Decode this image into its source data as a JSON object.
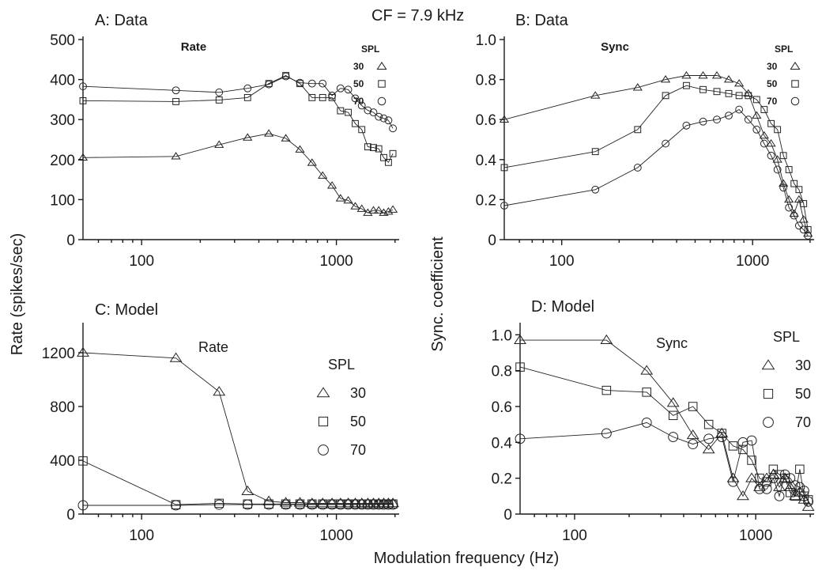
{
  "figure": {
    "header": "CF = 7.9 kHz",
    "shared_ylabel_rate": "Rate (spikes/sec)",
    "shared_ylabel_sync": "Sync. coefficient",
    "shared_xlabel": "Modulation frequency (Hz)"
  },
  "chart_data": [
    {
      "id": "A",
      "type": "line",
      "title": "A: Data",
      "inner_label": "Rate",
      "legend_title": "SPL",
      "xscale": "log",
      "xlim": [
        50,
        2100
      ],
      "ylim": [
        0,
        500
      ],
      "xticks": [
        100,
        1000
      ],
      "yticks": [
        0,
        100,
        200,
        300,
        400,
        500
      ],
      "series": [
        {
          "name": "30",
          "marker": "triangle",
          "x": [
            50,
            150,
            250,
            350,
            450,
            550,
            650,
            750,
            850,
            950,
            1050,
            1150,
            1250,
            1350,
            1450,
            1550,
            1650,
            1750,
            1850,
            1950
          ],
          "y": [
            205,
            208,
            237,
            255,
            265,
            253,
            225,
            192,
            160,
            135,
            103,
            98,
            83,
            77,
            67,
            73,
            73,
            67,
            70,
            75
          ]
        },
        {
          "name": "50",
          "marker": "square",
          "x": [
            50,
            150,
            250,
            350,
            450,
            550,
            650,
            750,
            850,
            950,
            1050,
            1150,
            1250,
            1350,
            1450,
            1550,
            1650,
            1750,
            1850,
            1950
          ],
          "y": [
            347,
            345,
            349,
            355,
            390,
            410,
            390,
            355,
            355,
            355,
            322,
            318,
            290,
            275,
            232,
            230,
            227,
            205,
            193,
            215
          ]
        },
        {
          "name": "70",
          "marker": "circle",
          "x": [
            50,
            150,
            250,
            350,
            450,
            550,
            650,
            750,
            850,
            950,
            1050,
            1150,
            1250,
            1350,
            1450,
            1550,
            1650,
            1750,
            1850,
            1950
          ],
          "y": [
            383,
            373,
            368,
            378,
            388,
            408,
            392,
            390,
            390,
            360,
            378,
            375,
            353,
            335,
            323,
            318,
            307,
            303,
            298,
            278
          ]
        }
      ]
    },
    {
      "id": "B",
      "type": "line",
      "title": "B: Data",
      "inner_label": "Sync",
      "legend_title": "SPL",
      "xscale": "log",
      "xlim": [
        50,
        2100
      ],
      "ylim": [
        0,
        1.0
      ],
      "xticks": [
        100,
        1000
      ],
      "yticks": [
        0,
        0.2,
        0.4,
        0.6,
        0.8,
        1.0
      ],
      "series": [
        {
          "name": "30",
          "marker": "triangle",
          "x": [
            50,
            150,
            250,
            350,
            450,
            550,
            650,
            750,
            850,
            950,
            1050,
            1150,
            1250,
            1350,
            1450,
            1550,
            1650,
            1750,
            1850,
            1950
          ],
          "y": [
            0.6,
            0.72,
            0.76,
            0.8,
            0.82,
            0.82,
            0.82,
            0.8,
            0.78,
            0.73,
            0.62,
            0.52,
            0.48,
            0.4,
            0.28,
            0.2,
            0.13,
            0.2,
            0.1,
            0.03
          ]
        },
        {
          "name": "50",
          "marker": "square",
          "x": [
            50,
            150,
            250,
            350,
            450,
            550,
            650,
            750,
            850,
            950,
            1050,
            1150,
            1250,
            1350,
            1450,
            1550,
            1650,
            1750,
            1850,
            1950
          ],
          "y": [
            0.36,
            0.44,
            0.55,
            0.72,
            0.77,
            0.75,
            0.74,
            0.73,
            0.72,
            0.72,
            0.7,
            0.65,
            0.58,
            0.55,
            0.42,
            0.35,
            0.28,
            0.25,
            0.18,
            0.05
          ]
        },
        {
          "name": "70",
          "marker": "circle",
          "x": [
            50,
            150,
            250,
            350,
            450,
            550,
            650,
            750,
            850,
            950,
            1050,
            1150,
            1250,
            1350,
            1450,
            1550,
            1650,
            1750,
            1850,
            1950
          ],
          "y": [
            0.17,
            0.25,
            0.36,
            0.48,
            0.57,
            0.59,
            0.6,
            0.62,
            0.65,
            0.6,
            0.55,
            0.48,
            0.42,
            0.35,
            0.26,
            0.16,
            0.12,
            0.07,
            0.05,
            0.02
          ]
        }
      ]
    },
    {
      "id": "C",
      "type": "line",
      "title": "C: Model",
      "inner_label": "Rate",
      "legend_title": "SPL",
      "xscale": "log",
      "xlim": [
        50,
        2100
      ],
      "ylim": [
        0,
        1400
      ],
      "xticks": [
        100,
        1000
      ],
      "yticks": [
        0,
        400,
        800,
        1200
      ],
      "series": [
        {
          "name": "30",
          "marker": "triangle",
          "x": [
            50,
            150,
            250,
            350,
            450,
            550,
            650,
            750,
            850,
            950,
            1050,
            1150,
            1250,
            1350,
            1450,
            1550,
            1650,
            1750,
            1850,
            1950
          ],
          "y": [
            1200,
            1160,
            910,
            170,
            95,
            85,
            85,
            80,
            80,
            80,
            80,
            80,
            80,
            80,
            80,
            80,
            80,
            80,
            80,
            80
          ]
        },
        {
          "name": "50",
          "marker": "square",
          "x": [
            50,
            150,
            250,
            350,
            450,
            550,
            650,
            750,
            850,
            950,
            1050,
            1150,
            1250,
            1350,
            1450,
            1550,
            1650,
            1750,
            1850,
            1950
          ],
          "y": [
            395,
            70,
            80,
            75,
            75,
            75,
            75,
            75,
            75,
            75,
            75,
            75,
            75,
            75,
            75,
            75,
            75,
            75,
            75,
            75
          ]
        },
        {
          "name": "70",
          "marker": "circle",
          "x": [
            50,
            150,
            250,
            350,
            450,
            550,
            650,
            750,
            850,
            950,
            1050,
            1150,
            1250,
            1350,
            1450,
            1550,
            1650,
            1750,
            1850,
            1950
          ],
          "y": [
            65,
            65,
            70,
            70,
            70,
            70,
            70,
            70,
            70,
            70,
            70,
            70,
            70,
            70,
            70,
            70,
            70,
            70,
            70,
            70
          ]
        }
      ]
    },
    {
      "id": "D",
      "type": "line",
      "title": "D: Model",
      "inner_label": "Sync",
      "legend_title": "SPL",
      "xscale": "log",
      "xlim": [
        50,
        2100
      ],
      "ylim": [
        0,
        1.05
      ],
      "xticks": [
        100,
        1000
      ],
      "yticks": [
        0,
        0.2,
        0.4,
        0.6,
        0.8,
        1.0
      ],
      "series": [
        {
          "name": "30",
          "marker": "triangle",
          "x": [
            50,
            150,
            250,
            350,
            450,
            550,
            650,
            750,
            850,
            950,
            1050,
            1150,
            1250,
            1350,
            1450,
            1550,
            1650,
            1750,
            1850,
            1950
          ],
          "y": [
            0.97,
            0.97,
            0.8,
            0.62,
            0.44,
            0.36,
            0.45,
            0.2,
            0.1,
            0.2,
            0.15,
            0.2,
            0.22,
            0.15,
            0.2,
            0.15,
            0.1,
            0.12,
            0.08,
            0.04
          ]
        },
        {
          "name": "50",
          "marker": "square",
          "x": [
            50,
            150,
            250,
            350,
            450,
            550,
            650,
            750,
            850,
            950,
            1050,
            1150,
            1250,
            1350,
            1450,
            1550,
            1650,
            1750,
            1850,
            1950
          ],
          "y": [
            0.82,
            0.69,
            0.68,
            0.55,
            0.6,
            0.5,
            0.45,
            0.38,
            0.36,
            0.3,
            0.2,
            0.18,
            0.25,
            0.22,
            0.2,
            0.12,
            0.1,
            0.25,
            0.1,
            0.08
          ]
        },
        {
          "name": "70",
          "marker": "circle",
          "x": [
            50,
            150,
            250,
            350,
            450,
            550,
            650,
            750,
            850,
            950,
            1050,
            1150,
            1250,
            1350,
            1450,
            1550,
            1650,
            1750,
            1850,
            1950
          ],
          "y": [
            0.42,
            0.45,
            0.51,
            0.43,
            0.39,
            0.42,
            0.43,
            0.18,
            0.4,
            0.41,
            0.14,
            0.14,
            0.2,
            0.1,
            0.22,
            0.2,
            0.16,
            0.15,
            0.13,
            0.07
          ]
        }
      ]
    }
  ]
}
